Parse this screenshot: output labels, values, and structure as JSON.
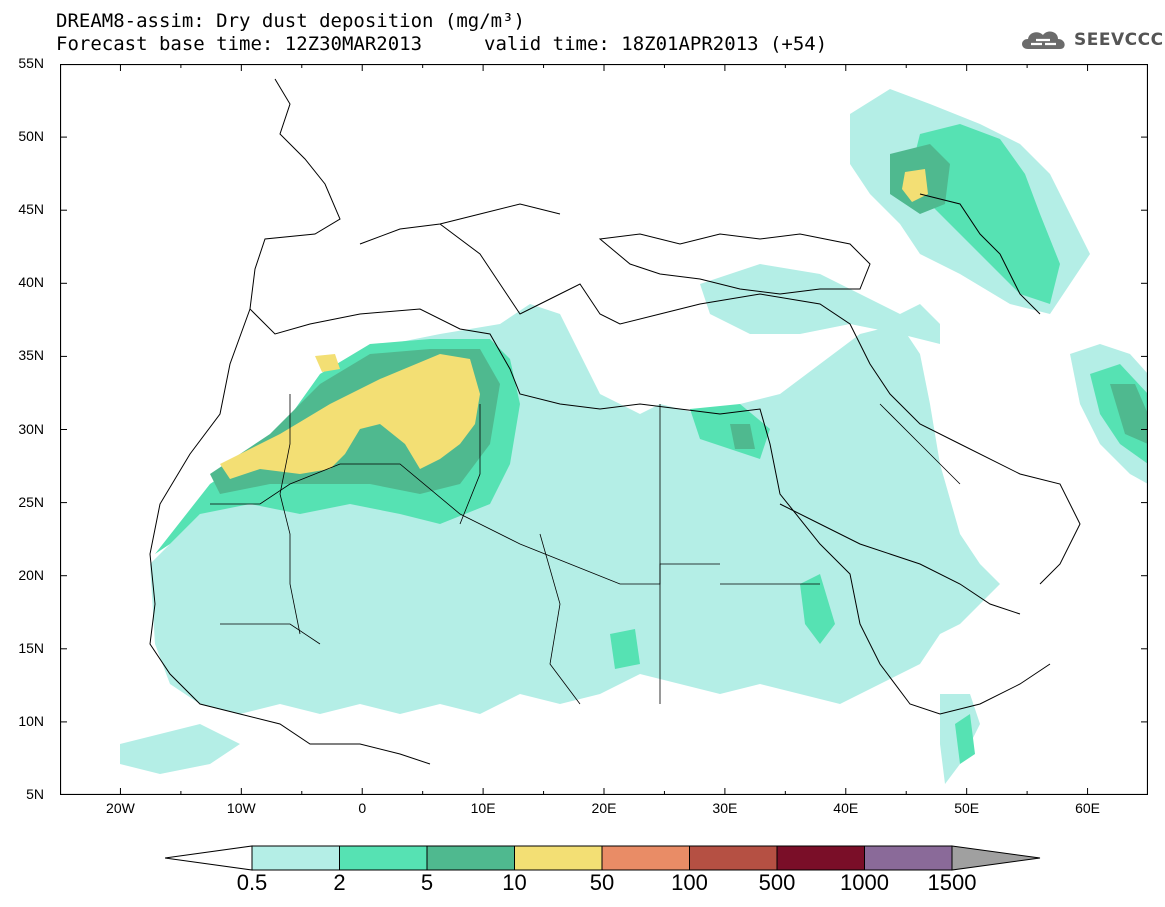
{
  "header": {
    "title_line": "DREAM8-assim: Dry dust deposition (mg/m³)",
    "forecast_line": "Forecast base time: 12Z30MAR2013",
    "valid_line": "valid time: 18Z01APR2013 (+54)",
    "logo_text": "SEEVCCC",
    "logo_icon": "cloud-icon"
  },
  "map": {
    "lat_labels": [
      "55N",
      "50N",
      "45N",
      "40N",
      "35N",
      "30N",
      "25N",
      "20N",
      "15N",
      "10N",
      "5N"
    ],
    "lon_labels": [
      "20W",
      "10W",
      "0",
      "10E",
      "20E",
      "30E",
      "40E",
      "50E",
      "60E"
    ],
    "lon_range": [
      -25,
      65
    ],
    "lat_range": [
      5,
      55
    ]
  },
  "colorbar": {
    "labels": [
      "0.5",
      "2",
      "5",
      "10",
      "50",
      "100",
      "500",
      "1000",
      "1500"
    ],
    "colors": [
      "#b4eee6",
      "#56e2b3",
      "#4fb98f",
      "#f3df74",
      "#e98c66",
      "#b55043",
      "#7a0e28",
      "#8a6a99",
      "#a0a0a0"
    ]
  }
}
